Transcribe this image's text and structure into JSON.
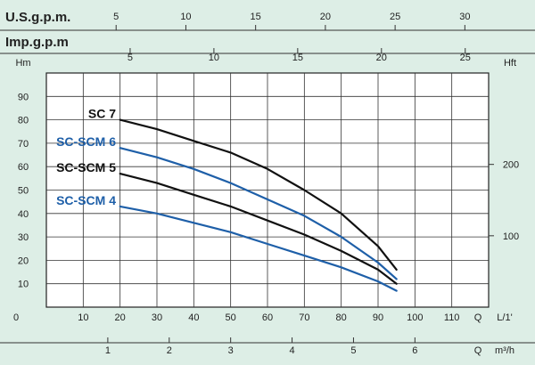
{
  "chart_data": {
    "type": "line",
    "top_scales": [
      {
        "name": "U.S.g.p.m.",
        "ticks": [
          5,
          10,
          15,
          20,
          25,
          30
        ],
        "lpm_per_unit": 3.785
      },
      {
        "name": "Imp.g.p.m",
        "ticks": [
          5,
          10,
          15,
          20,
          25
        ],
        "lpm_per_unit": 4.546
      }
    ],
    "left_axis": {
      "label": "Hm",
      "ticks": [
        10,
        20,
        30,
        40,
        50,
        60,
        70,
        80,
        90
      ],
      "ylim": [
        0,
        100
      ]
    },
    "right_axis": {
      "label": "Hft",
      "ticks": [
        100,
        200
      ],
      "meters_per_unit": 0.3048
    },
    "bottom_axis_lpm": {
      "label": "Q",
      "unit": "L/1'",
      "ticks": [
        0,
        10,
        20,
        30,
        40,
        50,
        60,
        70,
        80,
        90,
        100,
        110
      ],
      "xlim": [
        0,
        120
      ]
    },
    "bottom_axis_m3h": {
      "label": "Q",
      "unit": "m³/h",
      "ticks": [
        1,
        2,
        3,
        4,
        5,
        6
      ],
      "lpm_per_unit": 16.667
    },
    "grid": true,
    "series": [
      {
        "name": "SC 7",
        "color": "#111111",
        "x": [
          20,
          30,
          40,
          50,
          60,
          70,
          80,
          90,
          95
        ],
        "y": [
          80,
          76,
          71,
          66,
          59,
          50,
          40,
          26,
          16
        ]
      },
      {
        "name": "SC-SCM 6",
        "color": "#1e5fa8",
        "x": [
          20,
          30,
          40,
          50,
          60,
          70,
          80,
          90,
          95
        ],
        "y": [
          68,
          64,
          59,
          53,
          46,
          39,
          30,
          19,
          12
        ]
      },
      {
        "name": "SC-SCM 5",
        "color": "#111111",
        "x": [
          20,
          30,
          40,
          50,
          60,
          70,
          80,
          90,
          95
        ],
        "y": [
          57,
          53,
          48,
          43,
          37,
          31,
          24,
          16,
          10
        ]
      },
      {
        "name": "SC-SCM 4",
        "color": "#1e5fa8",
        "x": [
          20,
          30,
          40,
          50,
          60,
          70,
          80,
          90,
          95
        ],
        "y": [
          43,
          40,
          36,
          32,
          27,
          22,
          17,
          11,
          7
        ]
      }
    ]
  }
}
